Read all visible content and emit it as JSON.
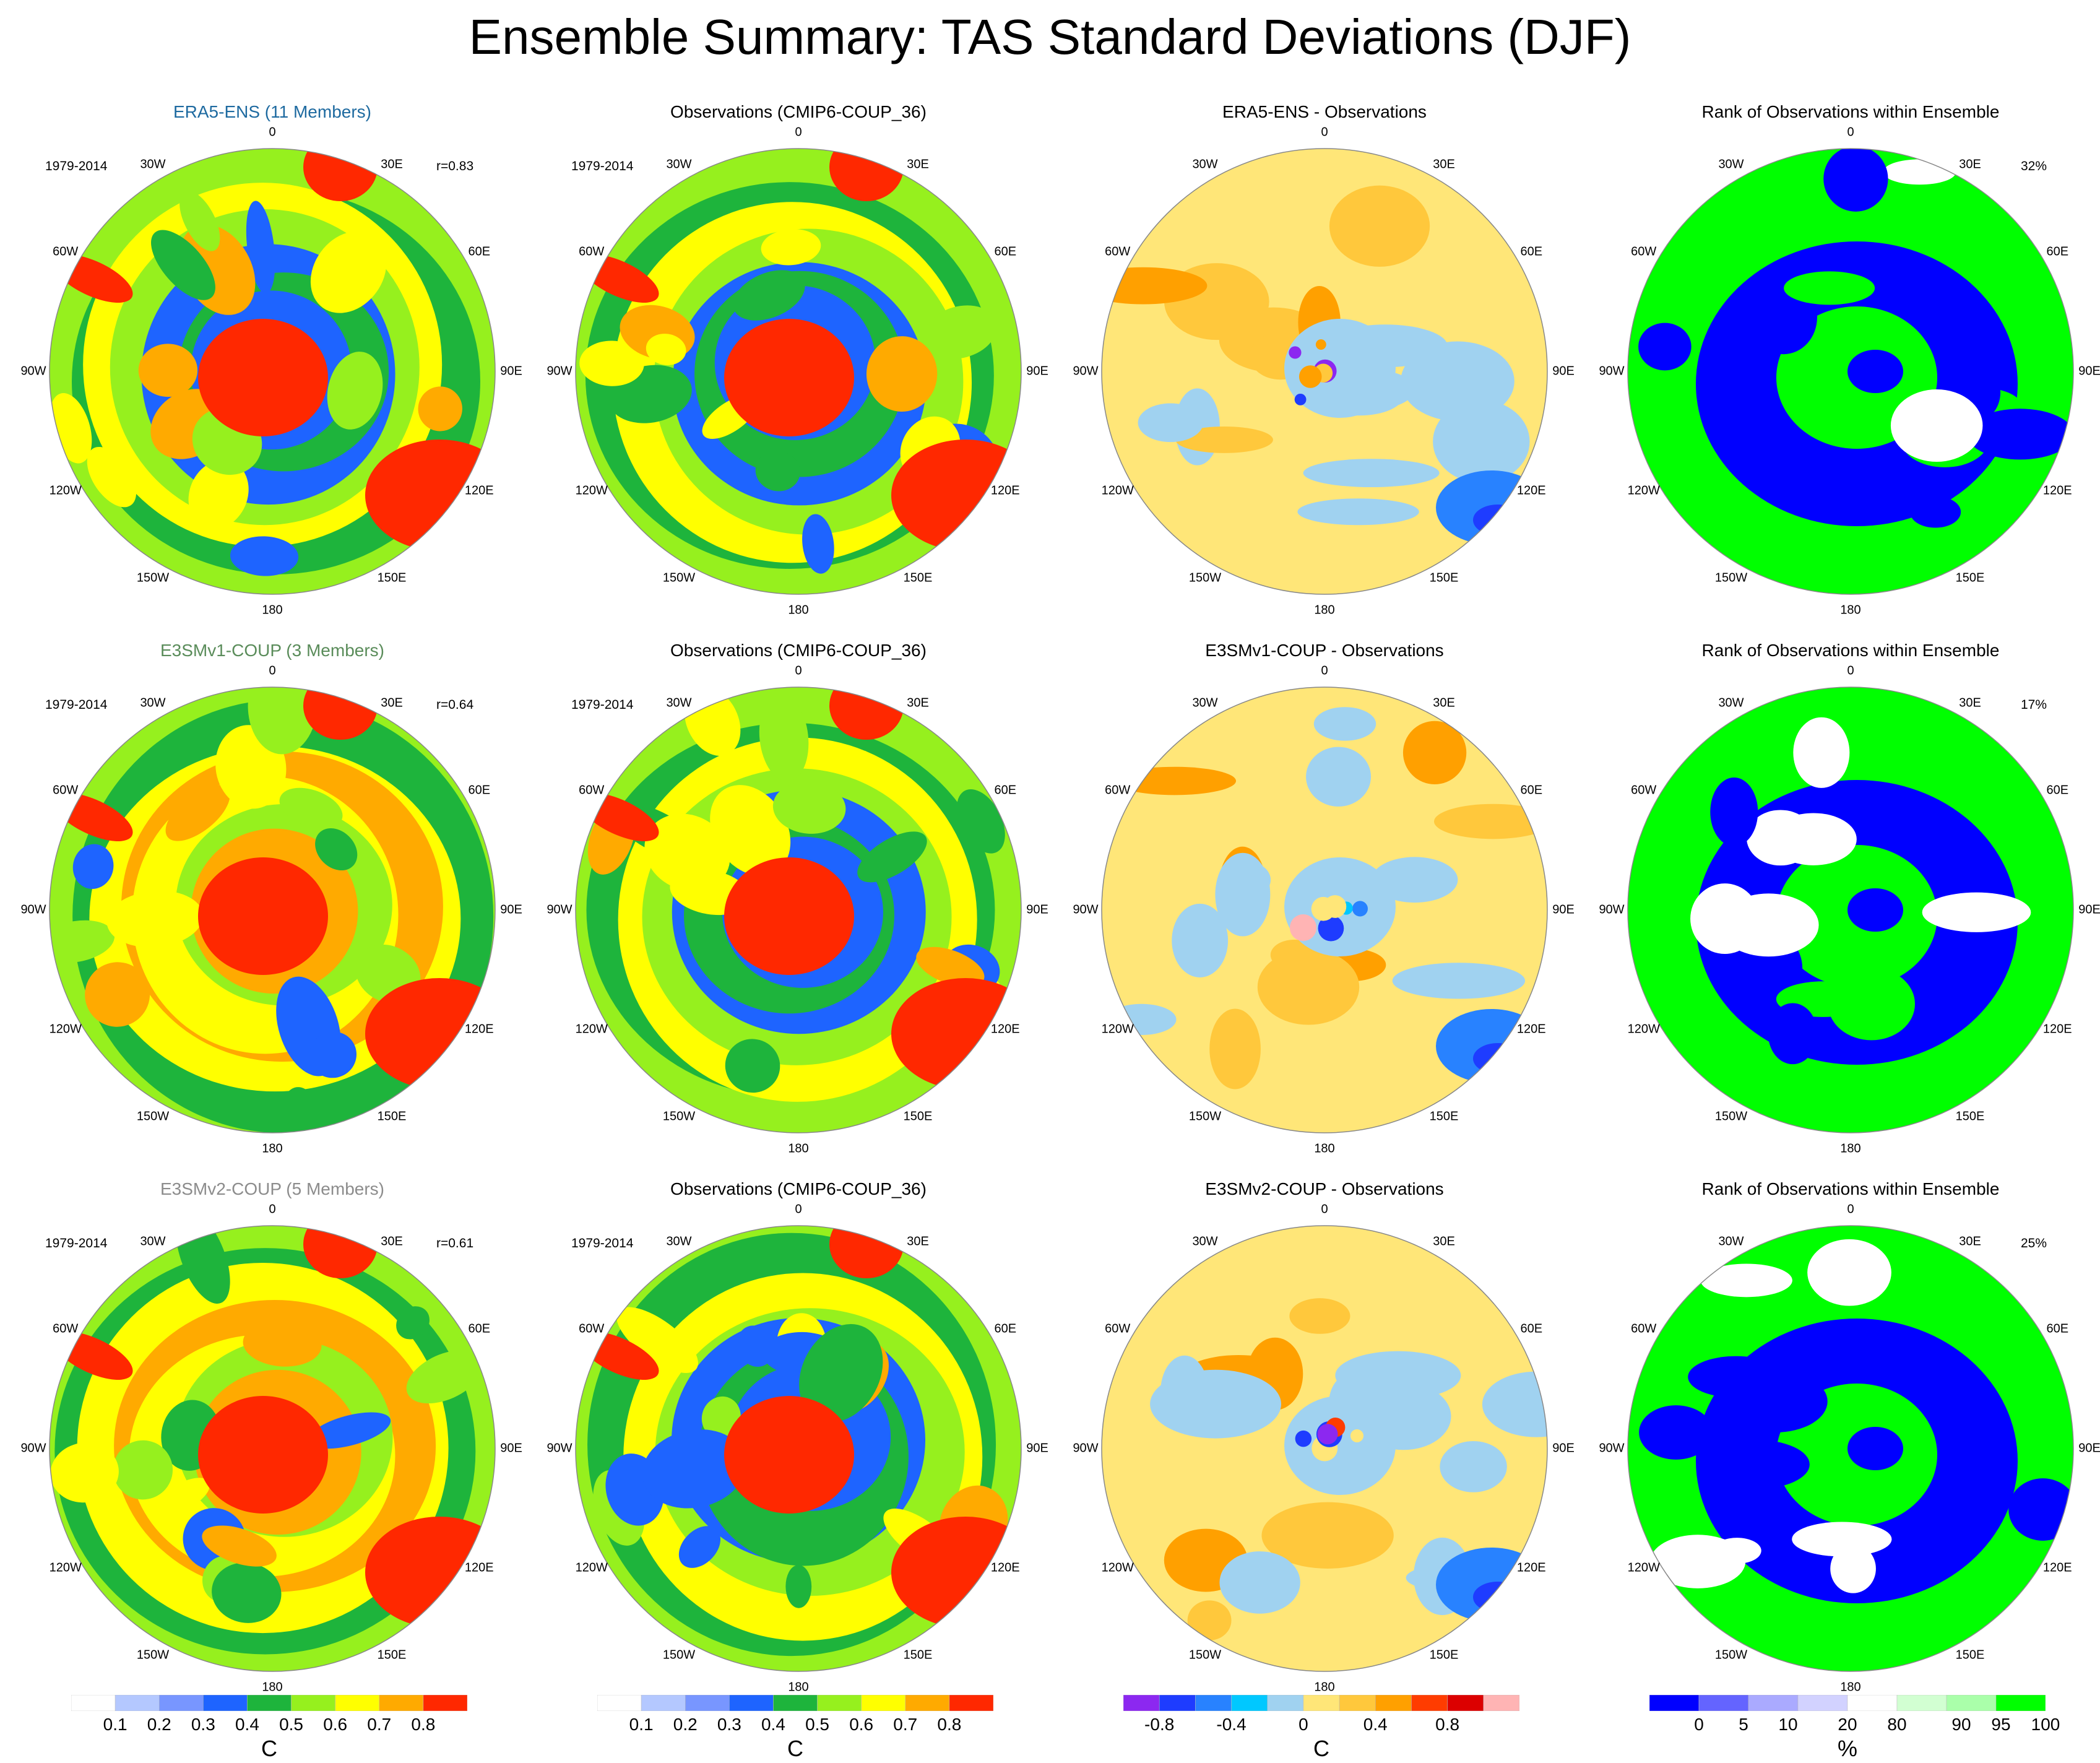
{
  "title": "Ensemble Summary: TAS Standard Deviations (DJF)",
  "colors": {
    "std_scale": [
      "#ffffff",
      "#b4c8ff",
      "#7896ff",
      "#1e64ff",
      "#1eb43c",
      "#96f01e",
      "#ffff00",
      "#ffaa00",
      "#ff2800"
    ],
    "diff_scale": [
      "#8c28f0",
      "#1e3cff",
      "#2882ff",
      "#00c8ff",
      "#a0d2f0",
      "#ffe678",
      "#ffc83c",
      "#ffa000",
      "#ff3c00",
      "#dc0000",
      "#ffb4b4"
    ],
    "rank_scale": [
      "#0000ff",
      "#6464ff",
      "#aaaaff",
      "#d2d2ff",
      "#ffffff",
      "#d2ffd2",
      "#aaffaa",
      "#00ff00"
    ]
  },
  "rows": [
    {
      "model": {
        "title": "ERA5-ENS (11 Members)",
        "title_color": "#1e6aa0",
        "period": "1979-2014",
        "corr": "r=0.83"
      },
      "obs": {
        "title": "Observations (CMIP6-COUP_36)",
        "period": "1979-2014"
      },
      "diff": {
        "title": "ERA5-ENS - Observations"
      },
      "rank": {
        "title": "Rank of Observations within Ensemble",
        "pct": "32%"
      }
    },
    {
      "model": {
        "title": "E3SMv1-COUP (3 Members)",
        "title_color": "#5a8c5a",
        "period": "1979-2014",
        "corr": "r=0.64"
      },
      "obs": {
        "title": "Observations (CMIP6-COUP_36)",
        "period": "1979-2014"
      },
      "diff": {
        "title": "E3SMv1-COUP - Observations"
      },
      "rank": {
        "title": "Rank of Observations within Ensemble",
        "pct": "17%"
      }
    },
    {
      "model": {
        "title": "E3SMv2-COUP (5 Members)",
        "title_color": "#8c8c8c",
        "period": "1979-2014",
        "corr": "r=0.61"
      },
      "obs": {
        "title": "Observations (CMIP6-COUP_36)",
        "period": "1979-2014"
      },
      "diff": {
        "title": "E3SMv2-COUP - Observations"
      },
      "rank": {
        "title": "Rank of Observations within Ensemble",
        "pct": "25%"
      }
    }
  ],
  "lon_labels": [
    "0",
    "30E",
    "60E",
    "90E",
    "120E",
    "150E",
    "180",
    "150W",
    "120W",
    "90W",
    "60W",
    "30W"
  ],
  "colorbars": {
    "std": {
      "ticks": [
        "0.1",
        "0.2",
        "0.3",
        "0.4",
        "0.5",
        "0.6",
        "0.7",
        "0.8"
      ],
      "unit": "C"
    },
    "diff": {
      "ticks": [
        "-0.8",
        "-0.4",
        "0",
        "0.4",
        "0.8"
      ],
      "unit": "C"
    },
    "rank": {
      "ticks": [
        "0",
        "5",
        "10",
        "20",
        "80",
        "90",
        "95",
        "100"
      ],
      "unit": "%"
    }
  }
}
